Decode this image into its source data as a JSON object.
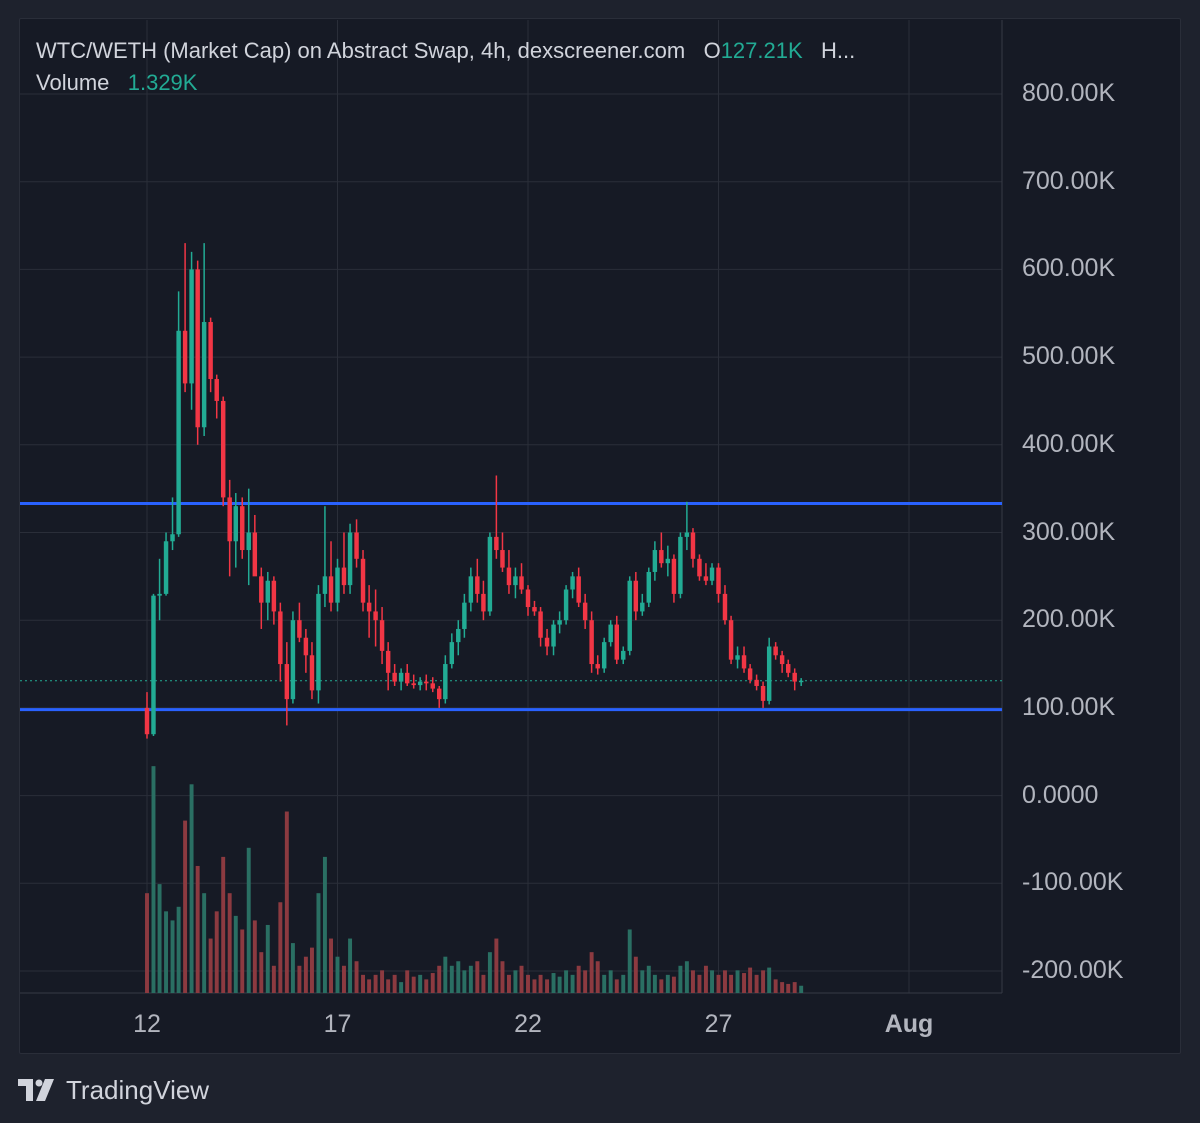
{
  "legend": {
    "title": "WTC/WETH (Market Cap) on Abstract Swap, 4h, dexscreener.com",
    "open_prefix": "O",
    "open_value": "127.21K",
    "more": "H...",
    "volume_label": "Volume",
    "volume_value": "1.329K"
  },
  "branding": {
    "logo_text": "TradingView"
  },
  "colors": {
    "up": "#22ab94",
    "down": "#f23645",
    "up_volume": "#2a6f63",
    "down_volume": "#8c3a40",
    "level_line": "#2962ff",
    "last_price_line": "#22ab94",
    "grid": "#2a2e39"
  },
  "chart_data": {
    "type": "candlestick",
    "interval": "4h",
    "x_axis": {
      "ticks": [
        "12",
        "17",
        "22",
        "27",
        "Aug"
      ],
      "tick_days": [
        12,
        17,
        22,
        27,
        32
      ],
      "range_days": [
        12,
        32
      ]
    },
    "y_axis": {
      "ticks": [
        "800.00K",
        "700.00K",
        "600.00K",
        "500.00K",
        "400.00K",
        "300.00K",
        "200.00K",
        "100.00K",
        "0.0000",
        "-100.00K",
        "-200.00K"
      ],
      "tick_values": [
        800000,
        700000,
        600000,
        500000,
        400000,
        300000,
        200000,
        100000,
        0,
        -100000,
        -200000
      ],
      "range": [
        -230000,
        880000
      ]
    },
    "grid": true,
    "horizontal_levels": [
      333000,
      98000
    ],
    "last_price": 131000,
    "candles": [
      [
        12.0,
        100000,
        118000,
        65000,
        70000
      ],
      [
        12.17,
        70000,
        230000,
        68000,
        228000
      ],
      [
        12.33,
        228000,
        270000,
        200000,
        230000
      ],
      [
        12.5,
        230000,
        300000,
        228000,
        290000
      ],
      [
        12.67,
        290000,
        340000,
        280000,
        298000
      ],
      [
        12.83,
        298000,
        575000,
        295000,
        530000
      ],
      [
        13.0,
        530000,
        630000,
        460000,
        470000
      ],
      [
        13.17,
        470000,
        620000,
        440000,
        600000
      ],
      [
        13.33,
        600000,
        610000,
        400000,
        420000
      ],
      [
        13.5,
        420000,
        630000,
        410000,
        540000
      ],
      [
        13.67,
        540000,
        545000,
        460000,
        475000
      ],
      [
        13.83,
        475000,
        480000,
        430000,
        450000
      ],
      [
        14.0,
        450000,
        455000,
        330000,
        340000
      ],
      [
        14.17,
        340000,
        360000,
        250000,
        290000
      ],
      [
        14.33,
        290000,
        345000,
        260000,
        330000
      ],
      [
        14.5,
        330000,
        340000,
        270000,
        280000
      ],
      [
        14.67,
        280000,
        350000,
        240000,
        300000
      ],
      [
        14.83,
        300000,
        320000,
        260000,
        250000
      ],
      [
        15.0,
        250000,
        260000,
        190000,
        220000
      ],
      [
        15.17,
        220000,
        255000,
        200000,
        245000
      ],
      [
        15.33,
        245000,
        250000,
        195000,
        210000
      ],
      [
        15.5,
        210000,
        220000,
        130000,
        150000
      ],
      [
        15.67,
        150000,
        175000,
        80000,
        110000
      ],
      [
        15.83,
        110000,
        210000,
        105000,
        200000
      ],
      [
        16.0,
        200000,
        220000,
        175000,
        180000
      ],
      [
        16.17,
        180000,
        190000,
        140000,
        160000
      ],
      [
        16.33,
        160000,
        175000,
        110000,
        120000
      ],
      [
        16.5,
        120000,
        240000,
        105000,
        230000
      ],
      [
        16.67,
        230000,
        330000,
        215000,
        250000
      ],
      [
        16.83,
        250000,
        290000,
        210000,
        220000
      ],
      [
        17.0,
        220000,
        270000,
        210000,
        260000
      ],
      [
        17.17,
        260000,
        300000,
        230000,
        240000
      ],
      [
        17.33,
        240000,
        310000,
        230000,
        300000
      ],
      [
        17.5,
        300000,
        315000,
        260000,
        270000
      ],
      [
        17.67,
        270000,
        280000,
        210000,
        220000
      ],
      [
        17.83,
        220000,
        240000,
        180000,
        210000
      ],
      [
        18.0,
        210000,
        235000,
        170000,
        200000
      ],
      [
        18.17,
        200000,
        215000,
        150000,
        165000
      ],
      [
        18.33,
        165000,
        175000,
        120000,
        140000
      ],
      [
        18.5,
        140000,
        150000,
        125000,
        130000
      ],
      [
        18.67,
        130000,
        145000,
        120000,
        140000
      ],
      [
        18.83,
        140000,
        150000,
        125000,
        128000
      ],
      [
        19.0,
        128000,
        138000,
        122000,
        126000
      ],
      [
        19.17,
        126000,
        135000,
        120000,
        130000
      ],
      [
        19.33,
        130000,
        138000,
        120000,
        128000
      ],
      [
        19.5,
        128000,
        135000,
        118000,
        122000
      ],
      [
        19.67,
        122000,
        125000,
        100000,
        110000
      ],
      [
        19.83,
        110000,
        160000,
        105000,
        150000
      ],
      [
        20.0,
        150000,
        185000,
        145000,
        175000
      ],
      [
        20.17,
        175000,
        200000,
        160000,
        190000
      ],
      [
        20.33,
        190000,
        230000,
        180000,
        220000
      ],
      [
        20.5,
        220000,
        260000,
        210000,
        250000
      ],
      [
        20.67,
        250000,
        270000,
        220000,
        230000
      ],
      [
        20.83,
        230000,
        245000,
        200000,
        210000
      ],
      [
        21.0,
        210000,
        300000,
        205000,
        295000
      ],
      [
        21.17,
        295000,
        365000,
        270000,
        280000
      ],
      [
        21.33,
        280000,
        300000,
        255000,
        260000
      ],
      [
        21.5,
        260000,
        280000,
        230000,
        240000
      ],
      [
        21.67,
        240000,
        260000,
        225000,
        250000
      ],
      [
        21.83,
        250000,
        265000,
        230000,
        235000
      ],
      [
        22.0,
        235000,
        240000,
        205000,
        215000
      ],
      [
        22.17,
        215000,
        222000,
        205000,
        210000
      ],
      [
        22.33,
        210000,
        215000,
        170000,
        180000
      ],
      [
        22.5,
        180000,
        190000,
        160000,
        170000
      ],
      [
        22.67,
        170000,
        200000,
        160000,
        195000
      ],
      [
        22.83,
        195000,
        210000,
        185000,
        200000
      ],
      [
        23.0,
        200000,
        240000,
        195000,
        235000
      ],
      [
        23.17,
        235000,
        255000,
        225000,
        250000
      ],
      [
        23.33,
        250000,
        260000,
        215000,
        220000
      ],
      [
        23.5,
        220000,
        230000,
        190000,
        200000
      ],
      [
        23.67,
        200000,
        210000,
        140000,
        150000
      ],
      [
        23.83,
        150000,
        160000,
        138000,
        145000
      ],
      [
        24.0,
        145000,
        180000,
        140000,
        175000
      ],
      [
        24.17,
        175000,
        200000,
        170000,
        195000
      ],
      [
        24.33,
        195000,
        205000,
        150000,
        155000
      ],
      [
        24.5,
        155000,
        170000,
        150000,
        165000
      ],
      [
        24.67,
        165000,
        250000,
        160000,
        245000
      ],
      [
        24.83,
        245000,
        255000,
        200000,
        210000
      ],
      [
        25.0,
        210000,
        230000,
        205000,
        220000
      ],
      [
        25.17,
        220000,
        260000,
        215000,
        255000
      ],
      [
        25.33,
        255000,
        290000,
        245000,
        280000
      ],
      [
        25.5,
        280000,
        300000,
        260000,
        265000
      ],
      [
        25.67,
        265000,
        285000,
        250000,
        270000
      ],
      [
        25.83,
        270000,
        275000,
        220000,
        230000
      ],
      [
        26.0,
        230000,
        300000,
        225000,
        295000
      ],
      [
        26.17,
        295000,
        335000,
        280000,
        300000
      ],
      [
        26.33,
        300000,
        305000,
        260000,
        270000
      ],
      [
        26.5,
        270000,
        275000,
        245000,
        250000
      ],
      [
        26.67,
        250000,
        265000,
        240000,
        245000
      ],
      [
        26.83,
        245000,
        265000,
        240000,
        260000
      ],
      [
        27.0,
        260000,
        265000,
        220000,
        230000
      ],
      [
        27.17,
        230000,
        240000,
        195000,
        200000
      ],
      [
        27.33,
        200000,
        205000,
        150000,
        155000
      ],
      [
        27.5,
        155000,
        170000,
        145000,
        160000
      ],
      [
        27.67,
        160000,
        170000,
        140000,
        145000
      ],
      [
        27.83,
        145000,
        150000,
        128000,
        132000
      ],
      [
        28.0,
        132000,
        138000,
        120000,
        125000
      ],
      [
        28.17,
        125000,
        130000,
        100000,
        108000
      ],
      [
        28.33,
        108000,
        180000,
        104000,
        170000
      ],
      [
        28.5,
        170000,
        175000,
        155000,
        160000
      ],
      [
        28.67,
        160000,
        165000,
        140000,
        150000
      ],
      [
        28.83,
        150000,
        155000,
        135000,
        140000
      ],
      [
        29.0,
        140000,
        145000,
        120000,
        130000
      ],
      [
        29.17,
        130000,
        134000,
        125000,
        131000
      ]
    ],
    "volumes": [
      [
        12.0,
        110000
      ],
      [
        12.17,
        250000
      ],
      [
        12.33,
        120000
      ],
      [
        12.5,
        90000
      ],
      [
        12.67,
        80000
      ],
      [
        12.83,
        95000
      ],
      [
        13.0,
        190000
      ],
      [
        13.17,
        230000
      ],
      [
        13.33,
        140000
      ],
      [
        13.5,
        110000
      ],
      [
        13.67,
        60000
      ],
      [
        13.83,
        90000
      ],
      [
        14.0,
        150000
      ],
      [
        14.17,
        110000
      ],
      [
        14.33,
        85000
      ],
      [
        14.5,
        70000
      ],
      [
        14.67,
        160000
      ],
      [
        14.83,
        80000
      ],
      [
        15.0,
        45000
      ],
      [
        15.17,
        75000
      ],
      [
        15.33,
        30000
      ],
      [
        15.5,
        100000
      ],
      [
        15.67,
        200000
      ],
      [
        15.83,
        55000
      ],
      [
        16.0,
        30000
      ],
      [
        16.17,
        40000
      ],
      [
        16.33,
        50000
      ],
      [
        16.5,
        110000
      ],
      [
        16.67,
        150000
      ],
      [
        16.83,
        60000
      ],
      [
        17.0,
        40000
      ],
      [
        17.17,
        30000
      ],
      [
        17.33,
        60000
      ],
      [
        17.5,
        35000
      ],
      [
        17.67,
        20000
      ],
      [
        17.83,
        15000
      ],
      [
        18.0,
        20000
      ],
      [
        18.17,
        25000
      ],
      [
        18.33,
        15000
      ],
      [
        18.5,
        20000
      ],
      [
        18.67,
        12000
      ],
      [
        18.83,
        25000
      ],
      [
        19.0,
        18000
      ],
      [
        19.17,
        20000
      ],
      [
        19.33,
        15000
      ],
      [
        19.5,
        22000
      ],
      [
        19.67,
        30000
      ],
      [
        19.83,
        40000
      ],
      [
        20.0,
        30000
      ],
      [
        20.17,
        35000
      ],
      [
        20.33,
        25000
      ],
      [
        20.5,
        30000
      ],
      [
        20.67,
        35000
      ],
      [
        20.83,
        20000
      ],
      [
        21.0,
        45000
      ],
      [
        21.17,
        60000
      ],
      [
        21.33,
        35000
      ],
      [
        21.5,
        20000
      ],
      [
        21.67,
        25000
      ],
      [
        21.83,
        30000
      ],
      [
        22.0,
        20000
      ],
      [
        22.17,
        15000
      ],
      [
        22.33,
        20000
      ],
      [
        22.5,
        15000
      ],
      [
        22.67,
        22000
      ],
      [
        22.83,
        18000
      ],
      [
        23.0,
        25000
      ],
      [
        23.17,
        20000
      ],
      [
        23.33,
        30000
      ],
      [
        23.5,
        25000
      ],
      [
        23.67,
        45000
      ],
      [
        23.83,
        35000
      ],
      [
        24.0,
        20000
      ],
      [
        24.17,
        25000
      ],
      [
        24.33,
        15000
      ],
      [
        24.5,
        20000
      ],
      [
        24.67,
        70000
      ],
      [
        24.83,
        40000
      ],
      [
        25.0,
        25000
      ],
      [
        25.17,
        30000
      ],
      [
        25.33,
        20000
      ],
      [
        25.5,
        15000
      ],
      [
        25.67,
        20000
      ],
      [
        25.83,
        18000
      ],
      [
        26.0,
        30000
      ],
      [
        26.17,
        35000
      ],
      [
        26.33,
        25000
      ],
      [
        26.5,
        20000
      ],
      [
        26.67,
        30000
      ],
      [
        26.83,
        25000
      ],
      [
        27.0,
        20000
      ],
      [
        27.17,
        25000
      ],
      [
        27.33,
        20000
      ],
      [
        27.5,
        25000
      ],
      [
        27.67,
        22000
      ],
      [
        27.83,
        28000
      ],
      [
        28.0,
        20000
      ],
      [
        28.17,
        25000
      ],
      [
        28.33,
        28000
      ],
      [
        28.5,
        15000
      ],
      [
        28.67,
        12000
      ],
      [
        28.83,
        10000
      ],
      [
        29.0,
        12000
      ],
      [
        29.17,
        8000
      ]
    ],
    "volume_range": [
      0,
      270000
    ]
  }
}
